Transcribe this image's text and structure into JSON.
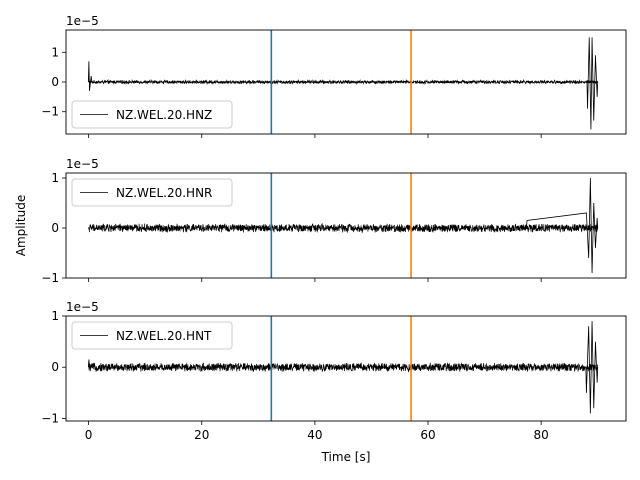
{
  "chart_data": [
    {
      "type": "line",
      "legend": "NZ.WEL.20.HNZ",
      "legend_placement": "lower-left",
      "offset_label": "1e−5",
      "xlim": [
        -4,
        95
      ],
      "ylim": [
        -1.75,
        1.75
      ],
      "yticks": [
        -1,
        0,
        1
      ],
      "yticklabels": [
        "−1",
        "0",
        "1"
      ],
      "vlines": [
        {
          "x": 32.3,
          "color": "#1f77b4"
        },
        {
          "x": 57.0,
          "color": "#ff7f0e"
        }
      ],
      "trace": {
        "color": "#000000",
        "start": 0.0,
        "end": 90.0,
        "noise": 0.05,
        "spikes": [
          [
            0.05,
            0.7
          ],
          [
            0.15,
            -0.3
          ],
          [
            0.45,
            0.2
          ],
          [
            88.2,
            -0.9
          ],
          [
            88.5,
            1.5
          ],
          [
            88.8,
            -1.6
          ],
          [
            89.0,
            1.5
          ],
          [
            89.3,
            -1.3
          ],
          [
            89.6,
            0.9
          ],
          [
            89.9,
            -0.5
          ]
        ]
      }
    },
    {
      "type": "line",
      "legend": "NZ.WEL.20.HNR",
      "legend_placement": "upper-left",
      "offset_label": "1e−5",
      "ylabel": "Amplitude",
      "xlim": [
        -4,
        95
      ],
      "ylim": [
        -1.0,
        1.1
      ],
      "yticks": [
        -1,
        0,
        1
      ],
      "yticklabels": [
        "−1",
        "0",
        "1"
      ],
      "vlines": [
        {
          "x": 32.3,
          "color": "#1f77b4"
        },
        {
          "x": 57.0,
          "color": "#ff7f0e"
        }
      ],
      "trace": {
        "color": "#000000",
        "start": 0.0,
        "end": 90.0,
        "noise": 0.07,
        "spikes": [
          [
            77.5,
            0.15
          ],
          [
            88.0,
            0.3
          ],
          [
            88.4,
            -0.6
          ],
          [
            88.7,
            1.0
          ],
          [
            89.0,
            -0.9
          ],
          [
            89.3,
            0.5
          ],
          [
            89.6,
            -0.4
          ],
          [
            89.9,
            0.2
          ]
        ]
      }
    },
    {
      "type": "line",
      "legend": "NZ.WEL.20.HNT",
      "legend_placement": "upper-left",
      "offset_label": "1e−5",
      "xlabel": "Time [s]",
      "xlim": [
        -4,
        95
      ],
      "xticks": [
        0,
        20,
        40,
        60,
        80
      ],
      "xticklabels": [
        "0",
        "20",
        "40",
        "60",
        "80"
      ],
      "ylim": [
        -1.05,
        1.0
      ],
      "yticks": [
        -1,
        0,
        1
      ],
      "yticklabels": [
        "−1",
        "0",
        "1"
      ],
      "vlines": [
        {
          "x": 32.3,
          "color": "#1f77b4"
        },
        {
          "x": 57.0,
          "color": "#ff7f0e"
        }
      ],
      "trace": {
        "color": "#000000",
        "start": 0.0,
        "end": 90.0,
        "noise": 0.07,
        "spikes": [
          [
            0.05,
            0.15
          ],
          [
            88.0,
            -0.5
          ],
          [
            88.4,
            0.8
          ],
          [
            88.7,
            -0.9
          ],
          [
            89.0,
            0.9
          ],
          [
            89.3,
            -0.8
          ],
          [
            89.6,
            0.5
          ],
          [
            89.9,
            -0.3
          ]
        ]
      }
    }
  ]
}
